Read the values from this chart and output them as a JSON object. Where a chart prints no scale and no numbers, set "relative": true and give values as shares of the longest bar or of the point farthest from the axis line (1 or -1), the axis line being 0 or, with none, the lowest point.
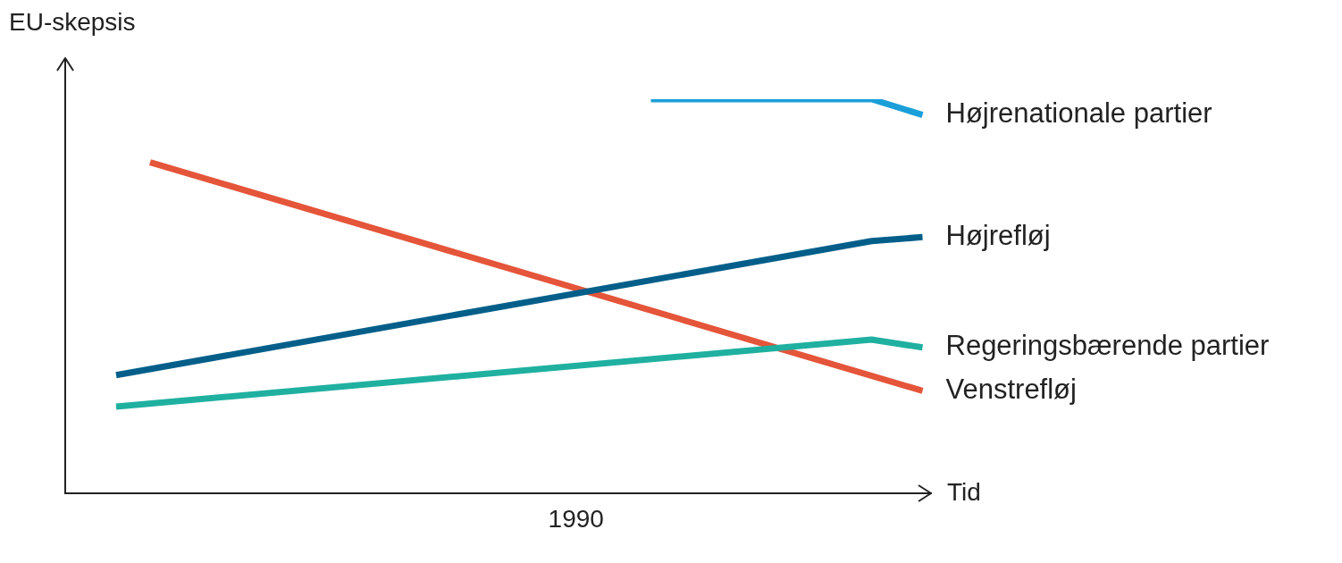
{
  "chart_data": {
    "type": "line",
    "relative": true,
    "xlabel": "Tid",
    "ylabel": "EU-skepsis",
    "legend": false,
    "grid": false,
    "marker": "none",
    "line_style": "solid",
    "annotations": [
      "1990"
    ],
    "categories": [
      null,
      null,
      null,
      null,
      null,
      null,
      null,
      null,
      null,
      null,
      null,
      null,
      null,
      null,
      null,
      null,
      null,
      null,
      null,
      null,
      null,
      null,
      null,
      null,
      null,
      null,
      null,
      null,
      null,
      null,
      null,
      null,
      null,
      null,
      null,
      null,
      null,
      null,
      null,
      null,
      null,
      null,
      null,
      null,
      null,
      null,
      null,
      null,
      null,
      null,
      null,
      null,
      null,
      null,
      null,
      null,
      null,
      null,
      null,
      null,
      null,
      null,
      null,
      null,
      null,
      null,
      null,
      null,
      null,
      null,
      null,
      null,
      null,
      null,
      null,
      null,
      null,
      null,
      null,
      null,
      null,
      null,
      null,
      null,
      null,
      null,
      null,
      null,
      null,
      null,
      null,
      null,
      null,
      null,
      null,
      null,
      null,
      null,
      null,
      null,
      null,
      null,
      null
    ],
    "series": [
      {
        "name": "Højrenationale partier",
        "color": "#1a9fd9",
        "values": [
          null,
          null,
          null,
          null,
          null,
          null,
          null,
          null,
          null,
          null,
          null,
          null,
          null,
          null,
          null,
          null,
          null,
          null,
          null,
          null,
          null,
          null,
          null,
          null,
          null,
          null,
          null,
          null,
          null,
          null,
          null,
          null,
          null,
          null,
          null,
          null,
          null,
          null,
          null,
          null,
          null,
          null,
          null,
          null,
          null,
          null,
          null,
          null,
          null,
          null,
          null,
          null,
          null,
          null,
          null,
          null,
          null,
          null,
          null,
          null,
          null,
          null,
          null,
          null,
          null,
          null,
          null,
          null,
          null,
          1,
          null,
          null,
          null,
          null,
          null,
          null,
          null,
          null,
          null,
          null,
          null,
          null,
          null,
          null,
          null,
          null,
          null,
          null,
          null,
          null,
          null,
          null,
          null,
          null,
          null,
          1,
          null,
          null,
          null,
          null,
          null,
          0.96,
          null
        ]
      },
      {
        "name": "Højrefløj",
        "color": "#035f8a",
        "values": [
          null,
          null,
          null,
          null,
          null,
          null,
          0.3,
          null,
          null,
          null,
          null,
          null,
          null,
          null,
          null,
          null,
          null,
          null,
          null,
          null,
          null,
          null,
          null,
          null,
          null,
          null,
          null,
          null,
          null,
          null,
          null,
          null,
          null,
          null,
          null,
          null,
          null,
          null,
          null,
          null,
          null,
          null,
          null,
          null,
          null,
          null,
          null,
          null,
          null,
          null,
          null,
          null,
          null,
          null,
          null,
          null,
          null,
          null,
          null,
          null,
          null,
          null,
          null,
          null,
          null,
          null,
          null,
          null,
          null,
          null,
          null,
          null,
          null,
          null,
          null,
          null,
          null,
          null,
          null,
          null,
          null,
          null,
          null,
          null,
          null,
          null,
          null,
          null,
          null,
          null,
          null,
          null,
          null,
          null,
          null,
          0.64,
          null,
          null,
          null,
          null,
          null,
          0.65,
          null
        ]
      },
      {
        "name": "Regeringsbærende partier",
        "color": "#1fb0a0",
        "values": [
          null,
          null,
          null,
          null,
          null,
          null,
          0.22,
          null,
          null,
          null,
          null,
          null,
          null,
          null,
          null,
          null,
          null,
          null,
          null,
          null,
          null,
          null,
          null,
          null,
          null,
          null,
          null,
          null,
          null,
          null,
          null,
          null,
          null,
          null,
          null,
          null,
          null,
          null,
          null,
          null,
          null,
          null,
          null,
          null,
          null,
          null,
          null,
          null,
          null,
          null,
          null,
          null,
          null,
          null,
          null,
          null,
          null,
          null,
          null,
          null,
          null,
          null,
          null,
          null,
          null,
          null,
          null,
          null,
          null,
          null,
          null,
          null,
          null,
          null,
          null,
          null,
          null,
          null,
          null,
          null,
          null,
          null,
          null,
          null,
          null,
          null,
          null,
          null,
          null,
          null,
          null,
          null,
          null,
          null,
          null,
          0.39,
          null,
          null,
          null,
          null,
          null,
          0.37,
          null
        ]
      },
      {
        "name": "Venstrefløj",
        "color": "#e4553a",
        "values": [
          null,
          null,
          null,
          null,
          null,
          null,
          null,
          null,
          null,
          null,
          0.84,
          null,
          null,
          null,
          null,
          null,
          null,
          null,
          null,
          null,
          null,
          null,
          null,
          null,
          null,
          null,
          null,
          null,
          null,
          null,
          null,
          null,
          null,
          null,
          null,
          null,
          null,
          null,
          null,
          null,
          null,
          null,
          null,
          null,
          null,
          null,
          null,
          null,
          null,
          null,
          null,
          null,
          null,
          null,
          null,
          null,
          null,
          null,
          null,
          null,
          null,
          null,
          null,
          null,
          null,
          null,
          null,
          null,
          null,
          null,
          null,
          null,
          null,
          null,
          null,
          null,
          null,
          null,
          null,
          null,
          null,
          null,
          null,
          null,
          null,
          null,
          null,
          null,
          null,
          null,
          null,
          null,
          null,
          null,
          null,
          null,
          null,
          null,
          null,
          null,
          null,
          0.26,
          null
        ]
      }
    ]
  }
}
